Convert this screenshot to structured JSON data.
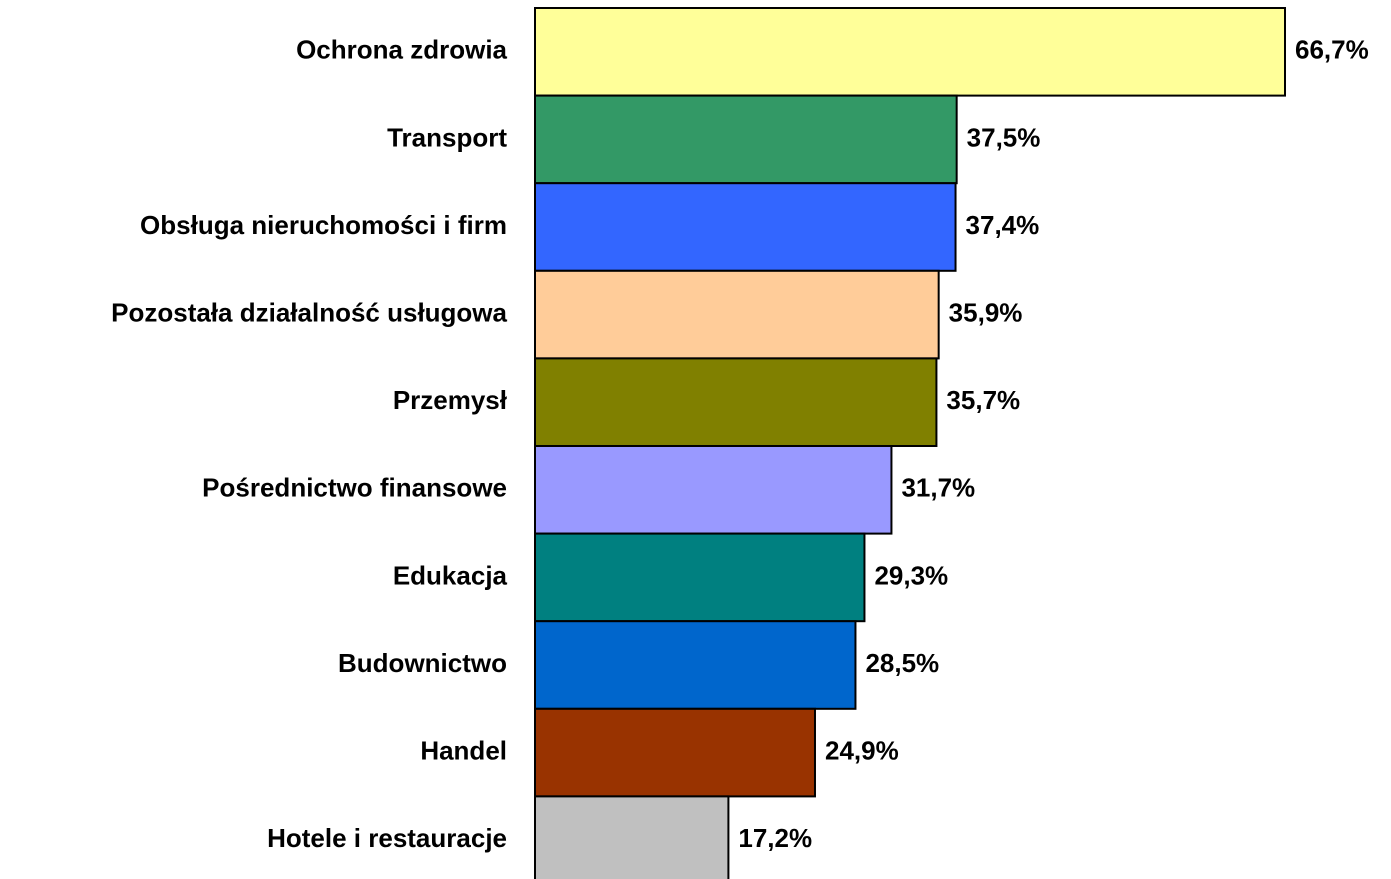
{
  "chart_data": {
    "type": "bar",
    "orientation": "horizontal",
    "categories": [
      "Ochrona zdrowia",
      "Transport",
      "Obsługa nieruchomości i firm",
      "Pozostała działalność usługowa",
      "Przemysł",
      "Pośrednictwo finansowe",
      "Edukacja",
      "Budownictwo",
      "Handel",
      "Hotele i restauracje"
    ],
    "values": [
      66.7,
      37.5,
      37.4,
      35.9,
      35.7,
      31.7,
      29.3,
      28.5,
      24.9,
      17.2
    ],
    "value_labels": [
      "66,7%",
      "37,5%",
      "37,4%",
      "35,9%",
      "35,7%",
      "31,7%",
      "29,3%",
      "28,5%",
      "24,9%",
      "17,2%"
    ],
    "colors": [
      "#ffff99",
      "#339966",
      "#3366ff",
      "#ffcc99",
      "#808000",
      "#9999ff",
      "#008080",
      "#0066cc",
      "#993300",
      "#c0c0c0"
    ]
  }
}
